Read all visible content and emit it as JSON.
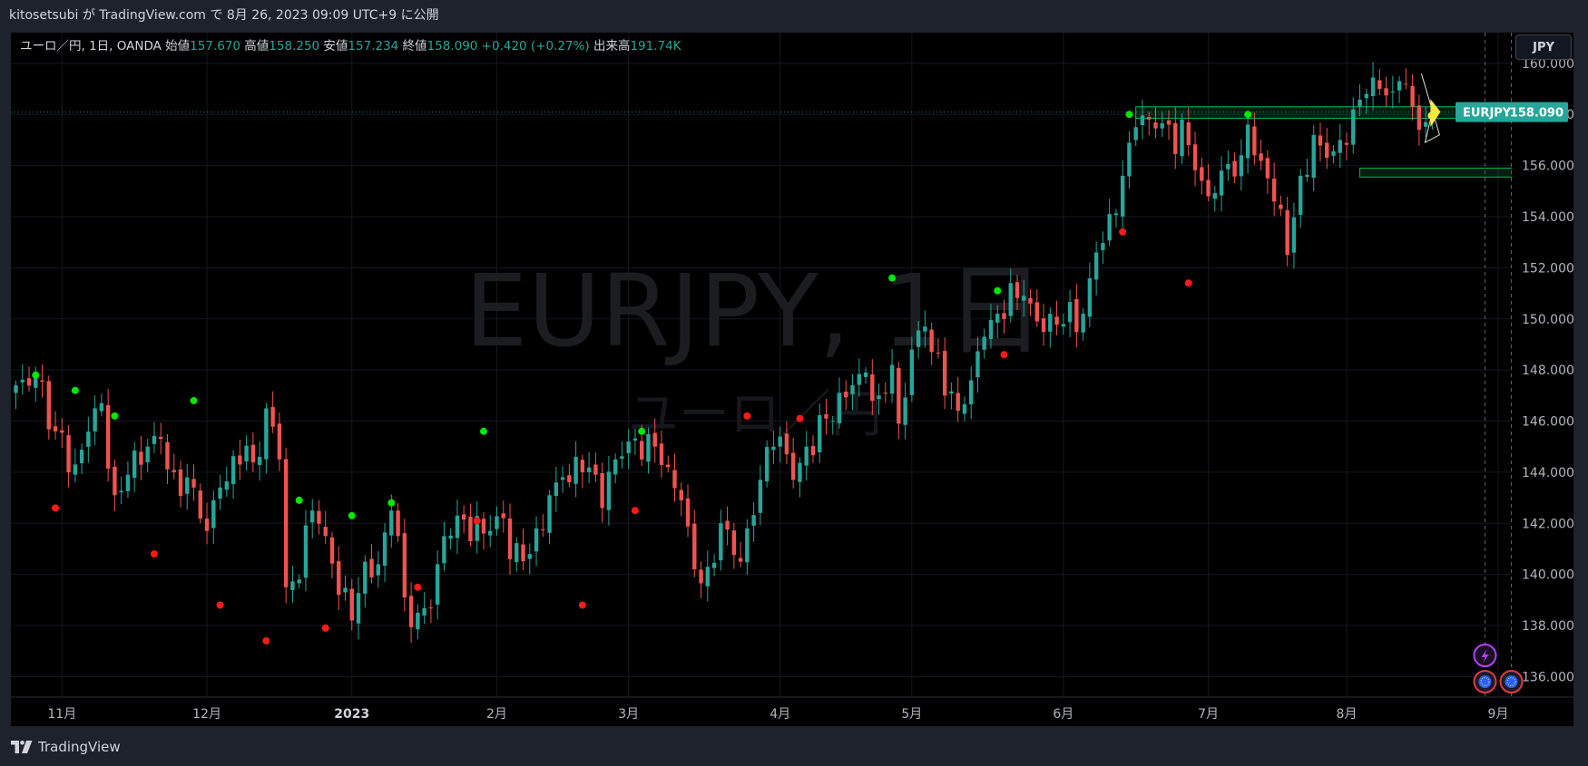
{
  "publish_line": "kitosetsubi が TradingView.com で 8月 26, 2023 09:09 UTC+9 に公開",
  "legend": {
    "symbol": "ユーロ／円, 1日, OANDA",
    "open_label": "始値",
    "open": "157.670",
    "high_label": "高値",
    "high": "158.250",
    "low_label": "安値",
    "low": "157.234",
    "close_label": "終値",
    "close": "158.090",
    "change": "+0.420 (+0.27%)",
    "volume_label": "出来高",
    "volume": "191.74K"
  },
  "currency_button": "JPY",
  "watermark": {
    "main": "EURJPY, 1日",
    "sub": "ユーロ／円"
  },
  "price_tag": {
    "symbol": "EURJPY",
    "value": "158.090"
  },
  "footer_brand": "TradingView",
  "colors": {
    "up": "#26a69a",
    "down": "#ef5350",
    "pivot_high": "#00e600",
    "pivot_low": "#ff1a1a",
    "zone": "#00ff7f",
    "price_tag": "#26a69a"
  },
  "icons": [
    "flash-icon",
    "event-globe-icon",
    "event-globe-icon",
    "tradingview-logo-icon"
  ],
  "chart_data": {
    "type": "candlestick",
    "symbol": "EURJPY",
    "timeframe": "1日",
    "ylim": [
      135.2,
      161.2
    ],
    "y_ticks": [
      136,
      138,
      140,
      142,
      144,
      146,
      148,
      150,
      152,
      154,
      156,
      158,
      160
    ],
    "y_tick_labels": [
      "136.000",
      "138.000",
      "140.000",
      "142.000",
      "144.000",
      "146.000",
      "148.000",
      "150.000",
      "152.000",
      "154.000",
      "156.000",
      "158.000",
      "160.000"
    ],
    "x_ticks": [
      {
        "label": "11月",
        "bar": 7,
        "bold": false
      },
      {
        "label": "12月",
        "bar": 29,
        "bold": false
      },
      {
        "label": "2023",
        "bar": 51,
        "bold": true
      },
      {
        "label": "2月",
        "bar": 73,
        "bold": false
      },
      {
        "label": "3月",
        "bar": 93,
        "bold": false
      },
      {
        "label": "4月",
        "bar": 116,
        "bold": false
      },
      {
        "label": "5月",
        "bar": 136,
        "bold": false
      },
      {
        "label": "6月",
        "bar": 159,
        "bold": false
      },
      {
        "label": "7月",
        "bar": 181,
        "bold": false
      },
      {
        "label": "8月",
        "bar": 202,
        "bold": false
      },
      {
        "label": "9月",
        "bar": 225,
        "bold": false
      }
    ],
    "bars_total": 229,
    "last_price": 158.09,
    "anchors": [
      [
        0,
        147.4
      ],
      [
        3,
        147.7
      ],
      [
        6,
        145.6
      ],
      [
        9,
        144.3
      ],
      [
        12,
        146.5
      ],
      [
        13,
        146.7
      ],
      [
        15,
        143.1
      ],
      [
        17,
        143.9
      ],
      [
        20,
        145.0
      ],
      [
        22,
        145.3
      ],
      [
        24,
        144.0
      ],
      [
        27,
        143.4
      ],
      [
        29,
        141.7
      ],
      [
        31,
        143.4
      ],
      [
        34,
        144.3
      ],
      [
        37,
        144.6
      ],
      [
        38,
        146.5
      ],
      [
        40,
        144.5
      ],
      [
        41,
        139.5
      ],
      [
        43,
        139.8
      ],
      [
        45,
        142.5
      ],
      [
        47,
        141.5
      ],
      [
        49,
        139.2
      ],
      [
        51,
        138.2
      ],
      [
        53,
        140.5
      ],
      [
        55,
        140.4
      ],
      [
        57,
        142.5
      ],
      [
        58,
        141.5
      ],
      [
        59,
        139.1
      ],
      [
        61,
        138.5
      ],
      [
        63,
        138.7
      ],
      [
        65,
        141.5
      ],
      [
        67,
        142.3
      ],
      [
        69,
        141.3
      ],
      [
        71,
        141.6
      ],
      [
        74,
        142.2
      ],
      [
        75,
        140.6
      ],
      [
        78,
        140.8
      ],
      [
        79,
        141.8
      ],
      [
        81,
        143.1
      ],
      [
        83,
        143.8
      ],
      [
        86,
        144.0
      ],
      [
        88,
        143.9
      ],
      [
        89,
        142.6
      ],
      [
        91,
        144.5
      ],
      [
        93,
        145.2
      ],
      [
        95,
        144.5
      ],
      [
        97,
        145.0
      ],
      [
        99,
        144.2
      ],
      [
        101,
        142.9
      ],
      [
        103,
        140.2
      ],
      [
        105,
        140.3
      ],
      [
        107,
        142.0
      ],
      [
        110,
        140.5
      ],
      [
        111,
        141.8
      ],
      [
        113,
        143.7
      ],
      [
        115,
        145.0
      ],
      [
        117,
        144.7
      ],
      [
        118,
        143.7
      ],
      [
        120,
        145.0
      ],
      [
        123,
        146.1
      ],
      [
        125,
        147.1
      ],
      [
        127,
        147.4
      ],
      [
        129,
        147.9
      ],
      [
        131,
        147.0
      ],
      [
        133,
        148.2
      ],
      [
        134,
        145.9
      ],
      [
        136,
        148.8
      ],
      [
        138,
        149.7
      ],
      [
        139,
        148.7
      ],
      [
        141,
        147.0
      ],
      [
        143,
        146.4
      ],
      [
        145,
        147.6
      ],
      [
        147,
        149.3
      ],
      [
        149,
        150.2
      ],
      [
        151,
        151.4
      ],
      [
        153,
        150.9
      ],
      [
        155,
        149.9
      ],
      [
        157,
        150.2
      ],
      [
        159,
        149.8
      ],
      [
        162,
        150.2
      ],
      [
        164,
        152.6
      ],
      [
        166,
        154.1
      ],
      [
        168,
        155.6
      ],
      [
        170,
        157.5
      ],
      [
        172,
        157.8
      ],
      [
        175,
        157.6
      ],
      [
        178,
        156.8
      ],
      [
        180,
        155.4
      ],
      [
        181,
        154.8
      ],
      [
        183,
        155.8
      ],
      [
        186,
        156.4
      ],
      [
        187,
        157.6
      ],
      [
        188,
        156.4
      ],
      [
        190,
        155.5
      ],
      [
        192,
        154.3
      ],
      [
        193,
        152.5
      ],
      [
        195,
        155.6
      ],
      [
        197,
        157.2
      ],
      [
        199,
        156.3
      ],
      [
        201,
        157.0
      ],
      [
        203,
        158.2
      ],
      [
        205,
        158.8
      ],
      [
        207,
        159.0
      ],
      [
        209,
        158.9
      ],
      [
        211,
        159.2
      ],
      [
        212,
        158.3
      ],
      [
        213,
        157.4
      ],
      [
        214,
        157.7
      ],
      [
        215,
        158.09
      ]
    ],
    "pivot_highs": [
      [
        3,
        147.8
      ],
      [
        9,
        147.2
      ],
      [
        15,
        146.2
      ],
      [
        27,
        146.8
      ],
      [
        43,
        142.9
      ],
      [
        51,
        142.3
      ],
      [
        57,
        142.8
      ],
      [
        71,
        145.6
      ],
      [
        95,
        145.6
      ],
      [
        133,
        151.6
      ],
      [
        149,
        151.1
      ],
      [
        169,
        158.0
      ],
      [
        187,
        158.0
      ]
    ],
    "pivot_lows": [
      [
        6,
        142.6
      ],
      [
        21,
        140.8
      ],
      [
        31,
        138.8
      ],
      [
        38,
        137.4
      ],
      [
        47,
        137.9
      ],
      [
        61,
        139.5
      ],
      [
        70,
        142.1
      ],
      [
        86,
        138.8
      ],
      [
        94,
        142.5
      ],
      [
        111,
        146.2
      ],
      [
        119,
        146.1
      ],
      [
        150,
        148.6
      ],
      [
        168,
        153.4
      ],
      [
        178,
        151.4
      ]
    ],
    "zones": [
      {
        "start_bar": 170,
        "end_bar": 226,
        "low": 157.85,
        "high": 158.3
      },
      {
        "start_bar": 204,
        "end_bar": 229,
        "low": 155.55,
        "high": 155.9
      }
    ],
    "vlines_bars": [
      223,
      227
    ]
  }
}
